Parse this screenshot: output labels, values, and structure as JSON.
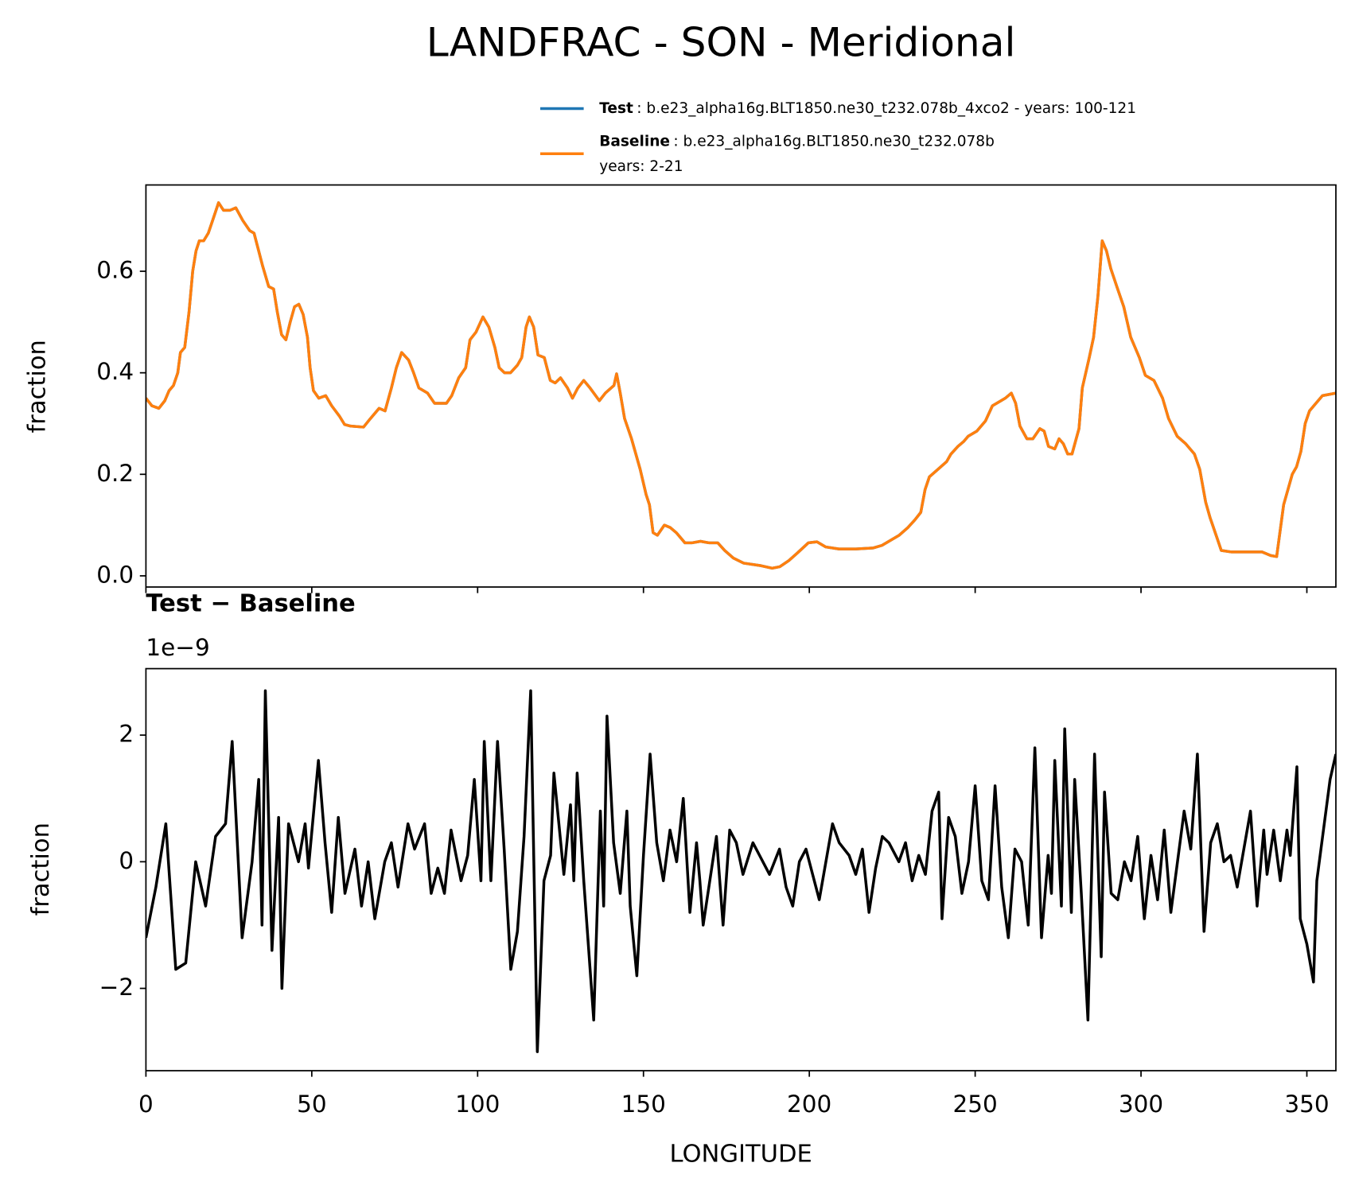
{
  "chart_data": [
    {
      "type": "line",
      "title": "LANDFRAC - SON - Meridional",
      "ylabel": "fraction",
      "xlim": [
        0,
        358.75
      ],
      "ylim": [
        -0.022,
        0.77
      ],
      "yticks": [
        {
          "value": 0,
          "label": "0.0"
        },
        0.2,
        0.4,
        0.6
      ],
      "legend": "upper right",
      "x": [
        0,
        1.8,
        3.9,
        5.7,
        7.0,
        8.3,
        9.6,
        10.4,
        11.7,
        13.0,
        14.1,
        15.1,
        16.1,
        17.4,
        18.8,
        20.1,
        21.9,
        23.4,
        25.3,
        27.1,
        29.2,
        31.3,
        32.6,
        33.6,
        35.2,
        37.0,
        38.5,
        39.6,
        40.9,
        42.2,
        43.5,
        44.8,
        46.1,
        47.4,
        48.7,
        49.5,
        50.5,
        52.1,
        54.2,
        56.0,
        58.3,
        59.9,
        61.7,
        65.6,
        67.7,
        70.3,
        72.1,
        74.0,
        75.5,
        77.1,
        79.2,
        80.7,
        82.3,
        84.9,
        87.0,
        90.6,
        92.2,
        94.3,
        96.4,
        97.7,
        99.5,
        101.6,
        103.4,
        105.2,
        106.5,
        108.1,
        109.9,
        112.0,
        113.3,
        114.6,
        115.6,
        116.9,
        118.2,
        120.1,
        121.9,
        123.4,
        125.0,
        127.1,
        128.6,
        130.2,
        132.0,
        133.9,
        136.7,
        138.5,
        141.1,
        141.9,
        143.0,
        144.3,
        146.4,
        149.0,
        150.8,
        151.8,
        152.9,
        154.2,
        156.3,
        158.1,
        159.9,
        162.5,
        164.6,
        167.2,
        169.8,
        172.4,
        174.5,
        177.1,
        180.2,
        185.4,
        188.8,
        191.1,
        193.8,
        196.4,
        199.7,
        202.3,
        204.9,
        208.9,
        214.1,
        219.3,
        221.9,
        224.5,
        227.1,
        229.7,
        231.8,
        233.6,
        234.9,
        236.2,
        238.8,
        241.4,
        242.7,
        244.8,
        246.6,
        247.9,
        250.5,
        253.1,
        255.2,
        257.8,
        259.1,
        260.9,
        262.2,
        263.5,
        265.6,
        267.4,
        269.5,
        270.8,
        272.1,
        274.0,
        275.3,
        276.6,
        277.9,
        279.2,
        281.3,
        282.3,
        284.4,
        285.7,
        287.0,
        288.3,
        289.6,
        290.9,
        292.7,
        294.8,
        296.9,
        299.5,
        301.3,
        303.9,
        306.5,
        308.3,
        310.9,
        313.5,
        316.1,
        317.7,
        319.5,
        320.8,
        322.9,
        324.2,
        327.3,
        336.5,
        339.1,
        340.9,
        343.0,
        344.3,
        345.6,
        346.9,
        348.2,
        349.5,
        350.8,
        353.4,
        354.7,
        358.75
      ],
      "series": [
        {
          "name": "Test",
          "description": [
            ": b.e23_alpha16g.BLT1850.ne30_t232.078b_4xco2 - years: 100-121"
          ],
          "color": "#1f77b4",
          "values": [
            0.35,
            0.335,
            0.33,
            0.345,
            0.365,
            0.375,
            0.4,
            0.44,
            0.45,
            0.52,
            0.6,
            0.64,
            0.66,
            0.66,
            0.675,
            0.7,
            0.735,
            0.72,
            0.72,
            0.725,
            0.7,
            0.68,
            0.675,
            0.65,
            0.61,
            0.57,
            0.565,
            0.52,
            0.475,
            0.465,
            0.5,
            0.53,
            0.535,
            0.515,
            0.47,
            0.41,
            0.365,
            0.35,
            0.355,
            0.335,
            0.315,
            0.298,
            0.295,
            0.293,
            0.31,
            0.33,
            0.325,
            0.37,
            0.41,
            0.44,
            0.425,
            0.4,
            0.37,
            0.36,
            0.34,
            0.34,
            0.355,
            0.39,
            0.41,
            0.465,
            0.48,
            0.51,
            0.49,
            0.45,
            0.41,
            0.4,
            0.4,
            0.415,
            0.43,
            0.49,
            0.51,
            0.49,
            0.435,
            0.43,
            0.385,
            0.38,
            0.39,
            0.37,
            0.35,
            0.37,
            0.385,
            0.37,
            0.345,
            0.36,
            0.375,
            0.398,
            0.36,
            0.31,
            0.27,
            0.21,
            0.16,
            0.14,
            0.085,
            0.08,
            0.1,
            0.095,
            0.085,
            0.065,
            0.065,
            0.068,
            0.065,
            0.065,
            0.05,
            0.035,
            0.025,
            0.02,
            0.015,
            0.018,
            0.03,
            0.045,
            0.065,
            0.067,
            0.057,
            0.053,
            0.053,
            0.055,
            0.06,
            0.07,
            0.08,
            0.095,
            0.11,
            0.125,
            0.17,
            0.195,
            0.21,
            0.225,
            0.24,
            0.255,
            0.265,
            0.275,
            0.285,
            0.305,
            0.335,
            0.345,
            0.35,
            0.36,
            0.34,
            0.295,
            0.27,
            0.27,
            0.29,
            0.285,
            0.255,
            0.25,
            0.27,
            0.26,
            0.24,
            0.24,
            0.29,
            0.37,
            0.43,
            0.47,
            0.55,
            0.66,
            0.64,
            0.605,
            0.57,
            0.53,
            0.47,
            0.43,
            0.395,
            0.385,
            0.35,
            0.31,
            0.275,
            0.26,
            0.24,
            0.21,
            0.145,
            0.115,
            0.075,
            0.05,
            0.047,
            0.047,
            0.04,
            0.038,
            0.14,
            0.17,
            0.2,
            0.215,
            0.245,
            0.3,
            0.325,
            0.345,
            0.355,
            0.36
          ]
        },
        {
          "name": "Baseline",
          "description": [
            ": b.e23_alpha16g.BLT1850.ne30_t232.078b",
            "years: 2-21"
          ],
          "color": "#ff7f0e",
          "values": [
            0.35,
            0.335,
            0.33,
            0.345,
            0.365,
            0.375,
            0.4,
            0.44,
            0.45,
            0.52,
            0.6,
            0.64,
            0.66,
            0.66,
            0.675,
            0.7,
            0.735,
            0.72,
            0.72,
            0.725,
            0.7,
            0.68,
            0.675,
            0.65,
            0.61,
            0.57,
            0.565,
            0.52,
            0.475,
            0.465,
            0.5,
            0.53,
            0.535,
            0.515,
            0.47,
            0.41,
            0.365,
            0.35,
            0.355,
            0.335,
            0.315,
            0.298,
            0.295,
            0.293,
            0.31,
            0.33,
            0.325,
            0.37,
            0.41,
            0.44,
            0.425,
            0.4,
            0.37,
            0.36,
            0.34,
            0.34,
            0.355,
            0.39,
            0.41,
            0.465,
            0.48,
            0.51,
            0.49,
            0.45,
            0.41,
            0.4,
            0.4,
            0.415,
            0.43,
            0.49,
            0.51,
            0.49,
            0.435,
            0.43,
            0.385,
            0.38,
            0.39,
            0.37,
            0.35,
            0.37,
            0.385,
            0.37,
            0.345,
            0.36,
            0.375,
            0.398,
            0.36,
            0.31,
            0.27,
            0.21,
            0.16,
            0.14,
            0.085,
            0.08,
            0.1,
            0.095,
            0.085,
            0.065,
            0.065,
            0.068,
            0.065,
            0.065,
            0.05,
            0.035,
            0.025,
            0.02,
            0.015,
            0.018,
            0.03,
            0.045,
            0.065,
            0.067,
            0.057,
            0.053,
            0.053,
            0.055,
            0.06,
            0.07,
            0.08,
            0.095,
            0.11,
            0.125,
            0.17,
            0.195,
            0.21,
            0.225,
            0.24,
            0.255,
            0.265,
            0.275,
            0.285,
            0.305,
            0.335,
            0.345,
            0.35,
            0.36,
            0.34,
            0.295,
            0.27,
            0.27,
            0.29,
            0.285,
            0.255,
            0.25,
            0.27,
            0.26,
            0.24,
            0.24,
            0.29,
            0.37,
            0.43,
            0.47,
            0.55,
            0.66,
            0.64,
            0.605,
            0.57,
            0.53,
            0.47,
            0.43,
            0.395,
            0.385,
            0.35,
            0.31,
            0.275,
            0.26,
            0.24,
            0.21,
            0.145,
            0.115,
            0.075,
            0.05,
            0.047,
            0.047,
            0.04,
            0.038,
            0.14,
            0.17,
            0.2,
            0.215,
            0.245,
            0.3,
            0.325,
            0.345,
            0.355,
            0.36
          ]
        }
      ]
    },
    {
      "type": "line",
      "title": "Test − Baseline",
      "offset_label": "1e−9",
      "ylabel": "fraction",
      "xlabel": "LONGITUDE",
      "xlim": [
        0,
        358.75
      ],
      "ylim": [
        -3.3,
        3.05
      ],
      "xticks": [
        0,
        50,
        100,
        150,
        200,
        250,
        300,
        350
      ],
      "yticks": [
        {
          "value": -2,
          "label": "−2"
        },
        0,
        2
      ],
      "x": [
        0,
        3,
        6,
        9,
        12,
        15,
        18,
        21,
        24,
        26,
        29,
        32,
        34,
        35,
        36,
        38,
        40,
        41,
        43,
        46,
        48,
        49,
        52,
        54,
        56,
        58,
        60,
        63,
        65,
        67,
        69,
        72,
        74,
        76,
        79,
        81,
        84,
        86,
        88,
        90,
        92,
        95,
        97,
        99,
        101,
        102,
        104,
        106,
        108,
        110,
        112,
        114,
        116,
        118,
        120,
        122,
        123,
        126,
        128,
        129,
        130,
        132,
        135,
        137,
        138,
        139,
        141,
        143,
        145,
        146,
        148,
        150,
        152,
        154,
        156,
        158,
        160,
        162,
        164,
        166,
        167,
        168,
        172,
        174,
        176,
        178,
        180,
        183,
        185,
        188,
        191,
        193,
        195,
        197,
        199,
        201,
        203,
        205,
        207,
        209,
        212,
        214,
        216,
        218,
        220,
        222,
        224,
        227,
        229,
        231,
        233,
        235,
        237,
        239,
        240,
        242,
        244,
        246,
        248,
        250,
        252,
        254,
        256,
        258,
        260,
        262,
        264,
        266,
        268,
        270,
        272,
        273,
        274,
        276,
        277,
        279,
        280,
        282,
        284,
        286,
        288,
        289,
        291,
        293,
        295,
        297,
        299,
        301,
        303,
        305,
        307,
        309,
        311,
        313,
        315,
        317,
        319,
        321,
        323,
        325,
        327,
        329,
        331,
        333,
        335,
        337,
        338,
        340,
        342,
        344,
        345,
        347,
        348,
        350,
        352,
        353,
        355,
        357,
        358.75
      ],
      "series": [
        {
          "color": "#000000",
          "values": [
            -1.2,
            -0.4,
            0.6,
            -1.7,
            -1.6,
            0.0,
            -0.7,
            0.4,
            0.6,
            1.9,
            -1.2,
            0.0,
            1.3,
            -1.0,
            2.7,
            -1.4,
            0.7,
            -2.0,
            0.6,
            0.0,
            0.6,
            -0.1,
            1.6,
            0.3,
            -0.8,
            0.7,
            -0.5,
            0.2,
            -0.7,
            0.0,
            -0.9,
            0.0,
            0.3,
            -0.4,
            0.6,
            0.2,
            0.6,
            -0.5,
            -0.1,
            -0.5,
            0.5,
            -0.3,
            0.1,
            1.3,
            -0.3,
            1.9,
            -0.3,
            1.9,
            0.2,
            -1.7,
            -1.1,
            0.4,
            2.7,
            -3.0,
            -0.3,
            0.1,
            1.4,
            -0.2,
            0.9,
            -0.3,
            1.4,
            -0.3,
            -2.5,
            0.8,
            -0.7,
            2.3,
            0.3,
            -0.5,
            0.8,
            -0.7,
            -1.8,
            0.1,
            1.7,
            0.3,
            -0.3,
            0.5,
            0.0,
            1.0,
            -0.8,
            0.3,
            -0.3,
            -1.0,
            0.4,
            -1.0,
            0.5,
            0.3,
            -0.2,
            0.3,
            0.1,
            -0.2,
            0.2,
            -0.4,
            -0.7,
            0.0,
            0.2,
            -0.2,
            -0.6,
            0.0,
            0.6,
            0.3,
            0.1,
            -0.2,
            0.2,
            -0.8,
            -0.1,
            0.4,
            0.3,
            0.0,
            0.3,
            -0.3,
            0.1,
            -0.2,
            0.8,
            1.1,
            -0.9,
            0.7,
            0.4,
            -0.5,
            0.0,
            1.2,
            -0.3,
            -0.6,
            1.2,
            -0.4,
            -1.2,
            0.2,
            0.0,
            -1.0,
            1.8,
            -1.2,
            0.1,
            -0.5,
            1.6,
            -0.7,
            2.1,
            -0.8,
            1.3,
            -0.5,
            -2.5,
            1.7,
            -1.5,
            1.1,
            -0.5,
            -0.6,
            0.0,
            -0.3,
            0.4,
            -0.9,
            0.1,
            -0.6,
            0.5,
            -0.8,
            0.0,
            0.8,
            0.2,
            1.7,
            -1.1,
            0.3,
            0.6,
            0.0,
            0.1,
            -0.4,
            0.2,
            0.8,
            -0.7,
            0.5,
            -0.2,
            0.5,
            -0.3,
            0.5,
            0.1,
            1.5,
            -0.9,
            -1.3,
            -1.9,
            -0.3,
            0.5,
            1.3,
            1.7
          ]
        }
      ]
    }
  ]
}
